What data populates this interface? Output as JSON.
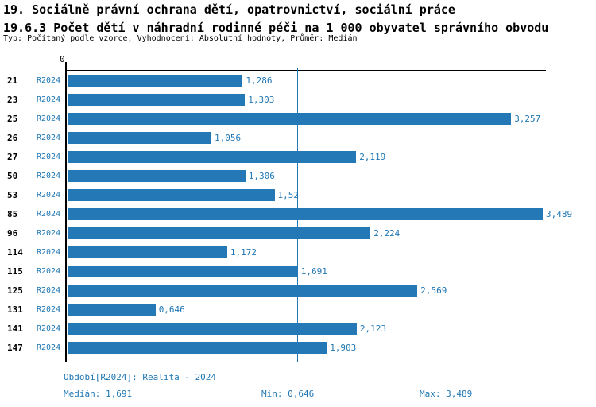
{
  "header": {
    "title_line1": "19. Sociálně právní ochrana dětí, opatrovnictví, sociální práce",
    "title_line2": "19.6.3 Počet dětí v náhradní rodinné péči na 1 000 obyvatel správního obvodu",
    "meta": "Typ: Počítaný podle vzorce, Vyhodnocení: Absolutní hodnoty, Průměr: Medián"
  },
  "chart_data": {
    "type": "bar",
    "orientation": "horizontal",
    "title": "19.6.3 Počet dětí v náhradní rodinné péči na 1 000 obyvatel správního obvodu",
    "categories": [
      "21",
      "23",
      "25",
      "26",
      "27",
      "50",
      "53",
      "85",
      "96",
      "114",
      "115",
      "125",
      "131",
      "141",
      "147"
    ],
    "series_label": "R2024",
    "values": [
      1.286,
      1.303,
      3.257,
      1.056,
      2.119,
      1.306,
      1.52,
      3.489,
      2.224,
      1.172,
      1.691,
      2.569,
      0.646,
      2.123,
      1.903
    ],
    "value_labels": [
      "1,286",
      "1,303",
      "3,257",
      "1,056",
      "2,119",
      "1,306",
      "1,52",
      "3,489",
      "2,224",
      "1,172",
      "1,691",
      "2,569",
      "0,646",
      "2,123",
      "1,903"
    ],
    "axis_zero_label": "0",
    "xlim": [
      0,
      3.489
    ],
    "median": 1.691,
    "median_line": true,
    "grid": false,
    "legend_position": "none",
    "bar_color": "#2478b5",
    "accent_text_color": "#1f77b4",
    "median_line_color": "#1f77b4"
  },
  "footer": {
    "period": "Období[R2024]: Realita - 2024",
    "median": "Medián: 1,691",
    "min": "Min: 0,646",
    "max": "Max: 3,489"
  }
}
